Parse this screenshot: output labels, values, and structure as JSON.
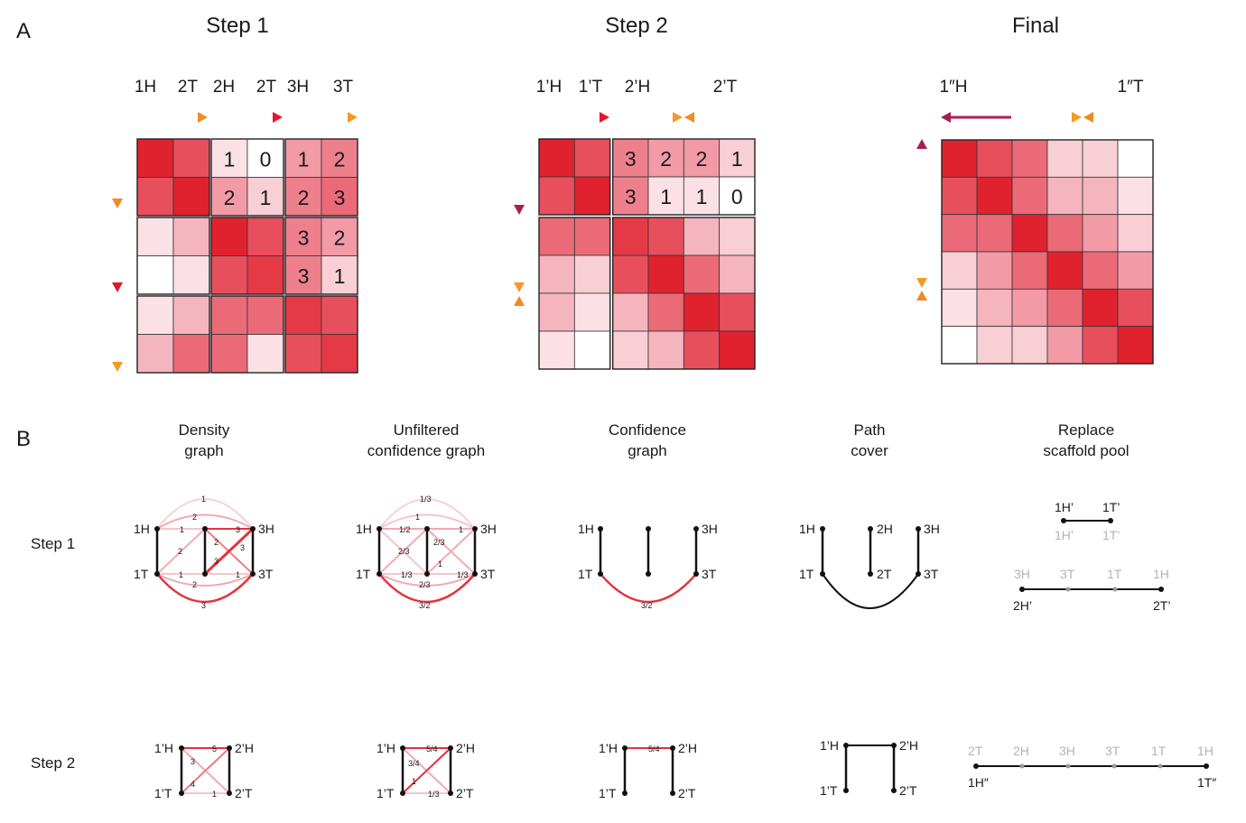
{
  "panel_a": {
    "label": "A",
    "step1": {
      "title": "Step 1",
      "col_labels": [
        "1H",
        "2T",
        "2H",
        "2T",
        "3H",
        "3T"
      ],
      "cell_values": [
        [
          "1",
          "0",
          "1",
          "2"
        ],
        [
          "2",
          "1",
          "2",
          "3"
        ],
        [
          "3",
          "2"
        ],
        [
          "3",
          "1"
        ]
      ],
      "shades": [
        [
          9,
          7,
          1,
          0,
          4,
          5
        ],
        [
          7,
          9,
          4,
          2,
          5,
          6
        ],
        [
          1,
          3,
          9,
          7,
          5,
          4
        ],
        [
          0,
          1,
          7,
          8,
          5,
          2
        ],
        [
          1,
          3,
          6,
          6,
          8,
          7
        ],
        [
          3,
          6,
          6,
          1,
          7,
          8
        ]
      ]
    },
    "step2": {
      "title": "Step 2",
      "col_labels": [
        "1’H",
        "1’T",
        "2’H",
        "2’T"
      ],
      "cell_values": [
        [
          "3",
          "2",
          "2",
          "1"
        ],
        [
          "3",
          "1",
          "1",
          "0"
        ]
      ],
      "shades": [
        [
          9,
          7,
          5,
          4,
          4,
          2
        ],
        [
          7,
          9,
          5,
          1,
          1,
          0
        ],
        [
          6,
          6,
          8,
          7,
          3,
          2
        ],
        [
          3,
          2,
          7,
          9,
          6,
          3
        ],
        [
          3,
          1,
          3,
          6,
          9,
          7
        ],
        [
          1,
          0,
          2,
          3,
          7,
          9
        ]
      ]
    },
    "final": {
      "title": "Final",
      "col_labels": [
        "1″H",
        "1″T"
      ],
      "shades": [
        [
          9,
          7,
          6,
          2,
          2,
          0
        ],
        [
          7,
          9,
          6,
          3,
          3,
          1
        ],
        [
          6,
          6,
          9,
          6,
          4,
          2
        ],
        [
          2,
          4,
          6,
          9,
          6,
          4
        ],
        [
          1,
          3,
          4,
          6,
          9,
          7
        ],
        [
          0,
          2,
          2,
          4,
          7,
          9
        ]
      ]
    }
  },
  "panel_b": {
    "label": "B",
    "columns": [
      {
        "line1": "Density",
        "line2": "graph"
      },
      {
        "line1": "Unfiltered",
        "line2": "confidence graph"
      },
      {
        "line1": "Confidence",
        "line2": "graph"
      },
      {
        "line1": "Path",
        "line2": "cover"
      },
      {
        "line1": "Replace",
        "line2": "scaffold pool"
      }
    ],
    "rows": [
      "Step 1",
      "Step 2"
    ],
    "step1_nodes": {
      "a": "1H",
      "b": "1T",
      "c": "3H",
      "d": "3T",
      "e": "2H",
      "f": "2T"
    },
    "density_edges": [
      "1",
      "2",
      "1",
      "2",
      "1",
      "2",
      "3",
      "2",
      "3",
      "3",
      "1",
      "3"
    ],
    "unfiltered_edges": [
      "1/3",
      "1",
      "1/2",
      "2/3",
      "2/3",
      "1",
      "1",
      "1/3",
      "1/3",
      "2/3",
      "3/2"
    ],
    "confidence_edge": "3/2",
    "replace": {
      "top_black": [
        "1H’",
        "1T’"
      ],
      "top_gray": [
        "1H’",
        "1T’"
      ],
      "mid_gray": [
        "3H",
        "3T",
        "1T",
        "1H"
      ],
      "mid_black": [
        "2H’",
        "2T’"
      ]
    },
    "step2_nodes": {
      "a": "1’H",
      "b": "2’H",
      "c": "1’T",
      "d": "2’T"
    },
    "step2_density_edges": [
      "5",
      "3",
      "4",
      "1"
    ],
    "step2_unfiltered_edges": [
      "5/4",
      "3/4",
      "1",
      "1/3"
    ],
    "step2_confidence_edge": "5/4",
    "final_pool": {
      "gray": [
        "2T",
        "2H",
        "3H",
        "3T",
        "1T",
        "1H"
      ],
      "black": [
        "1H″",
        "1T″"
      ]
    }
  }
}
